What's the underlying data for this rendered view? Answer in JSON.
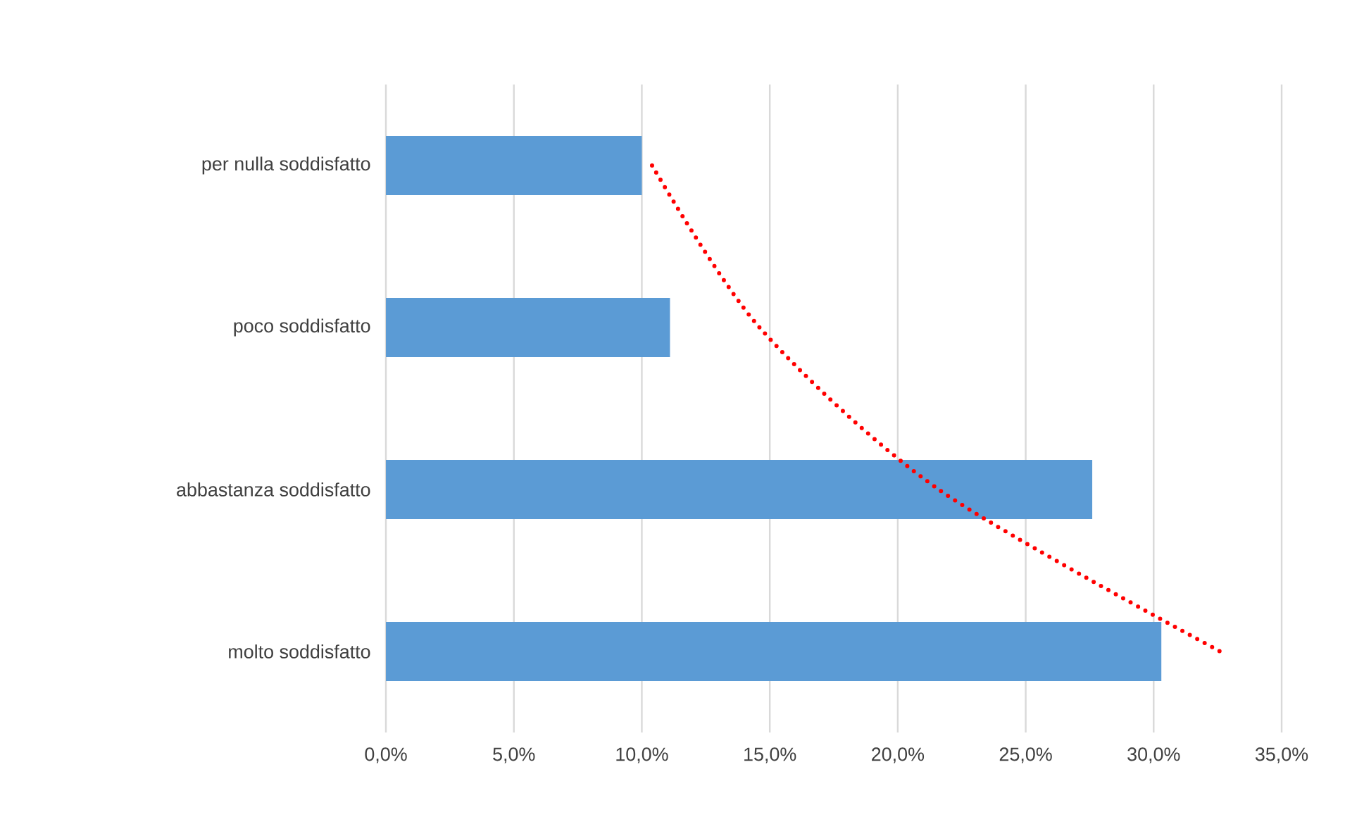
{
  "chart_data": {
    "type": "bar",
    "orientation": "horizontal",
    "categories": [
      "per nulla soddisfatto",
      "poco soddisfatto",
      "abbastanza soddisfatto",
      "molto soddisfatto"
    ],
    "series": [
      {
        "color": "#5b9bd5",
        "values": [
          10.0,
          11.1,
          27.6,
          30.3
        ]
      },
      {
        "type": "line",
        "color": "#ff0000",
        "line_style": "dotted",
        "values": [
          10.4,
          14.6,
          21.6,
          32.6
        ]
      }
    ],
    "xlim": [
      0,
      35
    ],
    "xticks": [
      {
        "value": 0,
        "label": "0,0%"
      },
      {
        "value": 5,
        "label": "5,0%"
      },
      {
        "value": 10,
        "label": "10,0%"
      },
      {
        "value": 15,
        "label": "15,0%"
      },
      {
        "value": 20,
        "label": "20,0%"
      },
      {
        "value": 25,
        "label": "25,0%"
      },
      {
        "value": 30,
        "label": "30,0%"
      },
      {
        "value": 35,
        "label": "35,0%"
      }
    ],
    "grid": "x",
    "marker": "none"
  }
}
